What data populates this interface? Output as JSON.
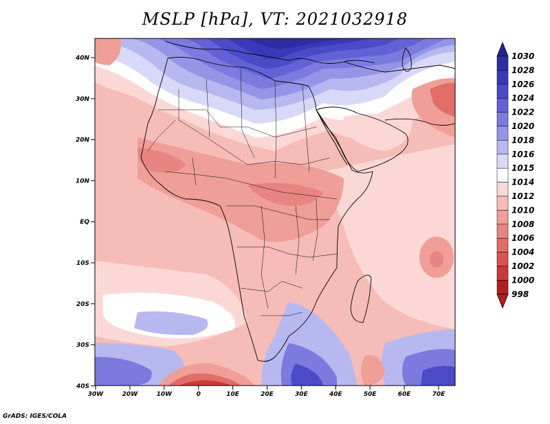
{
  "title": "MSLP [hPa], VT: 2021032918",
  "credit": "GrADS: IGES/COLA",
  "lat_labels": [
    "40N",
    "30N",
    "20N",
    "10N",
    "EQ",
    "10S",
    "20S",
    "30S",
    "40S"
  ],
  "lon_labels": [
    "30W",
    "20W",
    "10W",
    "0",
    "10E",
    "20E",
    "30E",
    "40E",
    "50E",
    "60E",
    "70E"
  ],
  "colorbar": {
    "labels": [
      "1030",
      "1028",
      "1026",
      "1024",
      "1022",
      "1020",
      "1018",
      "1016",
      "1015",
      "1014",
      "1012",
      "1010",
      "1008",
      "1006",
      "1004",
      "1002",
      "1000",
      "998"
    ],
    "colors": [
      "#25238f",
      "#2d2da3",
      "#3838b8",
      "#4b4bc8",
      "#6262d6",
      "#7a7adf",
      "#9595e8",
      "#b8b8f0",
      "#d8d8f8",
      "#ffffff",
      "#fbd8d6",
      "#f6bcb8",
      "#ef9e98",
      "#e88580",
      "#e06d68",
      "#d85452",
      "#c93a38",
      "#b21f1f"
    ]
  }
}
